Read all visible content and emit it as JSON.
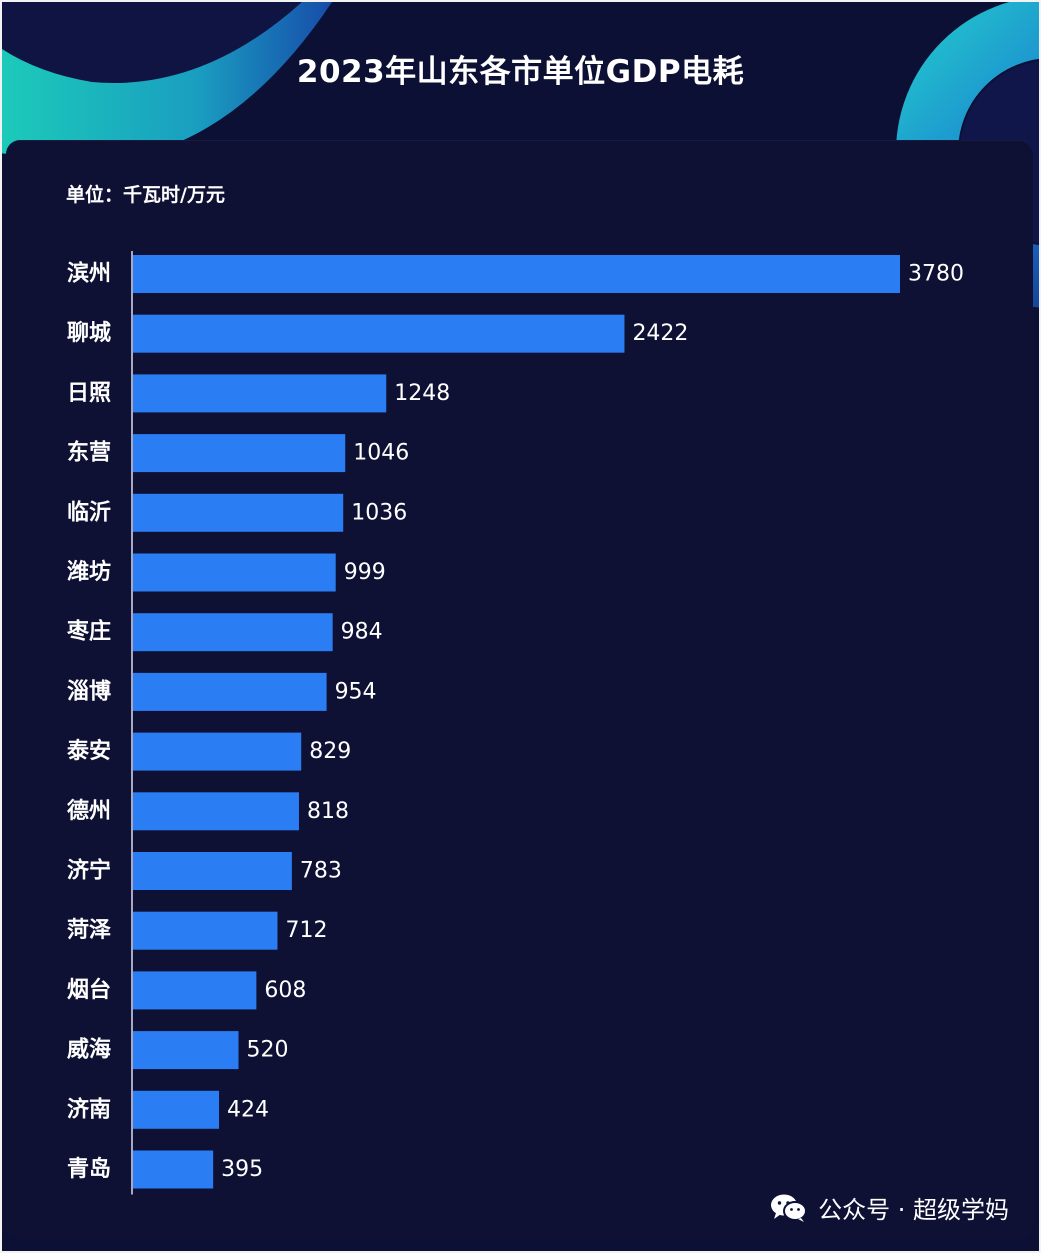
{
  "chart_data": {
    "type": "bar",
    "orientation": "horizontal",
    "title": "2023年山东各市单位GDP电耗",
    "unit_label": "单位：千瓦时/万元",
    "categories": [
      "滨州",
      "聊城",
      "日照",
      "东营",
      "临沂",
      "潍坊",
      "枣庄",
      "淄博",
      "泰安",
      "德州",
      "济宁",
      "菏泽",
      "烟台",
      "威海",
      "济南",
      "青岛"
    ],
    "values": [
      3780,
      2422,
      1248,
      1046,
      1036,
      999,
      984,
      954,
      829,
      818,
      783,
      712,
      608,
      520,
      424,
      395
    ],
    "xlim": [
      0,
      3780
    ],
    "grid": false,
    "legend": "none",
    "bar_color": "#2a7df2"
  },
  "colors": {
    "background": "#0d1035",
    "accent_teal": "#20d1c4",
    "accent_blue": "#2a7df2"
  },
  "watermark": {
    "icon": "wechat-icon",
    "text": "公众号 · 超级学妈"
  }
}
